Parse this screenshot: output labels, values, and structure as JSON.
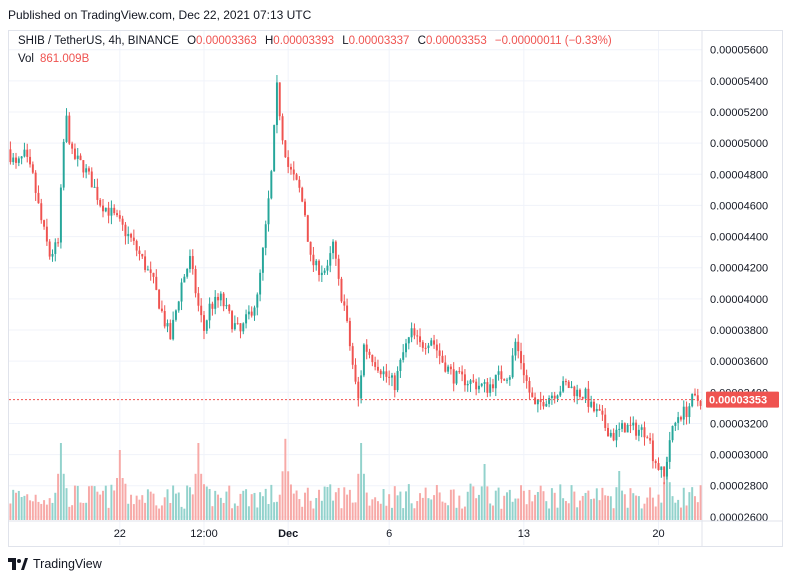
{
  "header": {
    "published": "Published on TradingView.com, Dec 22, 2021 07:13 UTC"
  },
  "legend": {
    "symbol": "SHIB / TetherUS, 4h, BINANCE",
    "o_label": "O",
    "o_value": "0.00003363",
    "h_label": "H",
    "h_value": "0.00003393",
    "l_label": "L",
    "l_value": "0.00003337",
    "c_label": "C",
    "c_value": "0.00003353",
    "change": "−0.00000011 (−0.33%)",
    "vol_label": "Vol",
    "vol_value": "861.009B"
  },
  "footer": {
    "brand": "TradingView"
  },
  "colors": {
    "up": "#26a69a",
    "down": "#ef5350",
    "vol_up": "#92d2cc",
    "vol_down": "#f7a9a7",
    "grid": "#f0f3fa",
    "price_line": "#ef5350"
  },
  "chart_data": {
    "type": "candlestick",
    "symbol": "SHIB / TetherUS",
    "interval": "4h",
    "exchange": "BINANCE",
    "last_price": "0.00003353",
    "y_ticks": [
      "0.00005600",
      "0.00005400",
      "0.00005200",
      "0.00005000",
      "0.00004800",
      "0.00004600",
      "0.00004400",
      "0.00004200",
      "0.00004000",
      "0.00003800",
      "0.00003600",
      "0.00003400",
      "0.00003200",
      "0.00003000",
      "0.00002800",
      "0.00002600"
    ],
    "ylim": [
      2.58e-05,
      5.72e-05
    ],
    "x_ticks": [
      {
        "label": "22",
        "bar": 39,
        "bold": false
      },
      {
        "label": "12:00",
        "bar": 69,
        "bold": false
      },
      {
        "label": "Dec",
        "bar": 99,
        "bold": true
      },
      {
        "label": "6",
        "bar": 135,
        "bold": false
      },
      {
        "label": "13",
        "bar": 183,
        "bold": false
      },
      {
        "label": "20",
        "bar": 231,
        "bold": false
      }
    ],
    "bar_count": 247,
    "price_anchors": [
      [
        0,
        4.96e-05
      ],
      [
        3,
        4.85e-05
      ],
      [
        6,
        4.92e-05
      ],
      [
        9,
        4.78e-05
      ],
      [
        12,
        4.5e-05
      ],
      [
        15,
        4.28e-05
      ],
      [
        18,
        4.35e-05
      ],
      [
        20,
        5e-05
      ],
      [
        21,
        5.15e-05
      ],
      [
        23,
        4.92e-05
      ],
      [
        27,
        4.85e-05
      ],
      [
        30,
        4.75e-05
      ],
      [
        33,
        4.62e-05
      ],
      [
        37,
        4.55e-05
      ],
      [
        40,
        4.48e-05
      ],
      [
        44,
        4.38e-05
      ],
      [
        48,
        4.25e-05
      ],
      [
        52,
        4.1e-05
      ],
      [
        56,
        3.85e-05
      ],
      [
        58,
        3.75e-05
      ],
      [
        62,
        4.1e-05
      ],
      [
        65,
        4.25e-05
      ],
      [
        68,
        3.95e-05
      ],
      [
        70,
        3.8e-05
      ],
      [
        72,
        3.95e-05
      ],
      [
        76,
        4e-05
      ],
      [
        80,
        3.85e-05
      ],
      [
        83,
        3.78e-05
      ],
      [
        86,
        3.9e-05
      ],
      [
        89,
        4e-05
      ],
      [
        92,
        4.45e-05
      ],
      [
        94,
        4.8e-05
      ],
      [
        96,
        5.35e-05
      ],
      [
        98,
        5.05e-05
      ],
      [
        100,
        4.85e-05
      ],
      [
        104,
        4.7e-05
      ],
      [
        106,
        4.55e-05
      ],
      [
        108,
        4.25e-05
      ],
      [
        110,
        4.2e-05
      ],
      [
        114,
        4.18e-05
      ],
      [
        116,
        4.35e-05
      ],
      [
        118,
        4.1e-05
      ],
      [
        120,
        3.95e-05
      ],
      [
        122,
        3.7e-05
      ],
      [
        124,
        3.45e-05
      ],
      [
        125,
        3.35e-05
      ],
      [
        127,
        3.7e-05
      ],
      [
        131,
        3.6e-05
      ],
      [
        135,
        3.5e-05
      ],
      [
        138,
        3.45e-05
      ],
      [
        141,
        3.65e-05
      ],
      [
        144,
        3.78e-05
      ],
      [
        147,
        3.7e-05
      ],
      [
        151,
        3.75e-05
      ],
      [
        155,
        3.6e-05
      ],
      [
        159,
        3.5e-05
      ],
      [
        163,
        3.48e-05
      ],
      [
        167,
        3.45e-05
      ],
      [
        171,
        3.43e-05
      ],
      [
        175,
        3.5e-05
      ],
      [
        179,
        3.52e-05
      ],
      [
        181,
        3.72e-05
      ],
      [
        183,
        3.6e-05
      ],
      [
        186,
        3.4e-05
      ],
      [
        188,
        3.3e-05
      ],
      [
        191,
        3.35e-05
      ],
      [
        195,
        3.4e-05
      ],
      [
        199,
        3.45e-05
      ],
      [
        203,
        3.4e-05
      ],
      [
        206,
        3.38e-05
      ],
      [
        208,
        3.3e-05
      ],
      [
        211,
        3.25e-05
      ],
      [
        213,
        3.18e-05
      ],
      [
        216,
        3.12e-05
      ],
      [
        220,
        3.18e-05
      ],
      [
        224,
        3.16e-05
      ],
      [
        228,
        3.15e-05
      ],
      [
        230,
        3e-05
      ],
      [
        232,
        2.92e-05
      ],
      [
        234,
        2.85e-05
      ],
      [
        236,
        3.1e-05
      ],
      [
        239,
        3.25e-05
      ],
      [
        242,
        3.28e-05
      ],
      [
        244,
        3.35e-05
      ],
      [
        246,
        3.35e-05
      ]
    ],
    "volume_spikes": [
      [
        18,
        0.55
      ],
      [
        39,
        0.5
      ],
      [
        67,
        0.55
      ],
      [
        98,
        0.58
      ],
      [
        125,
        0.55
      ],
      [
        169,
        0.4
      ],
      [
        217,
        0.35
      ],
      [
        234,
        0.45
      ]
    ]
  }
}
